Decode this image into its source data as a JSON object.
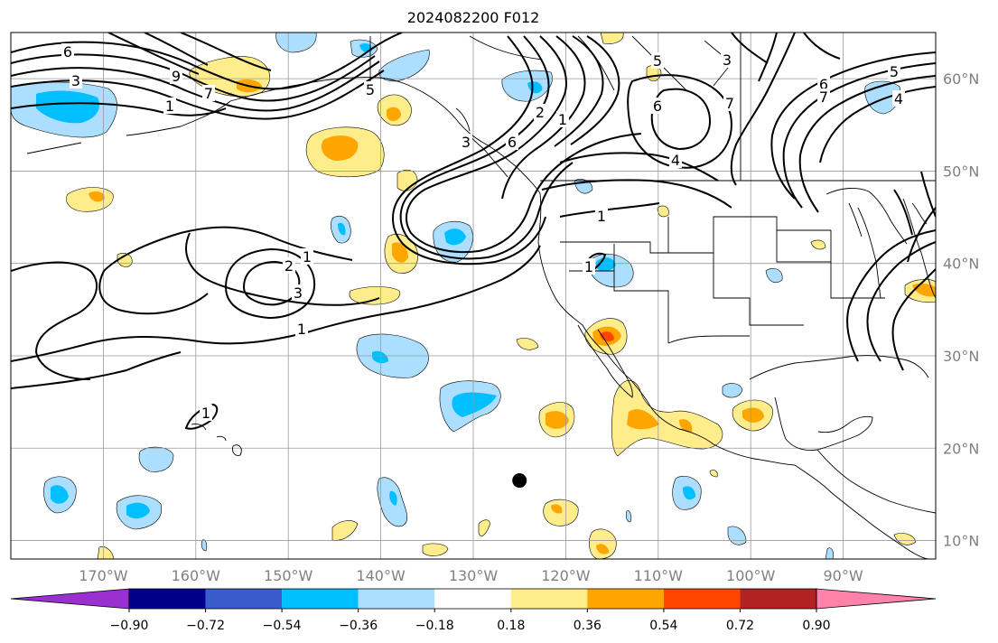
{
  "title": "2024082200 F012",
  "map": {
    "lon_labels": [
      "170°W",
      "160°W",
      "150°W",
      "140°W",
      "130°W",
      "120°W",
      "110°W",
      "100°W",
      "90°W"
    ],
    "lat_labels": [
      "60°N",
      "50°N",
      "40°N",
      "30°N",
      "20°N",
      "10°N"
    ],
    "extent": {
      "lon": [
        -180,
        -80
      ],
      "lat": [
        8,
        65
      ]
    },
    "contour_labels": [
      "6",
      "3",
      "1",
      "9",
      "7",
      "5",
      "3",
      "2",
      "1",
      "6",
      "5",
      "3",
      "6",
      "7",
      "4",
      "1",
      "6",
      "5",
      "7",
      "4",
      "1",
      "2",
      "1",
      "3",
      "1",
      "1"
    ],
    "storm_marker": {
      "lon": -125,
      "lat": 16.5
    }
  },
  "colorbar": {
    "tick_labels": [
      "−0.90",
      "−0.72",
      "−0.54",
      "−0.36",
      "−0.18",
      "0.18",
      "0.36",
      "0.54",
      "0.72",
      "0.90"
    ],
    "colors": [
      "#9b30d0",
      "#00008b",
      "#3a5bcc",
      "#00bfff",
      "#abdeff",
      "#ffffff",
      "#ffec8b",
      "#ffa500",
      "#ff4500",
      "#b22222",
      "#ff82ab"
    ]
  }
}
